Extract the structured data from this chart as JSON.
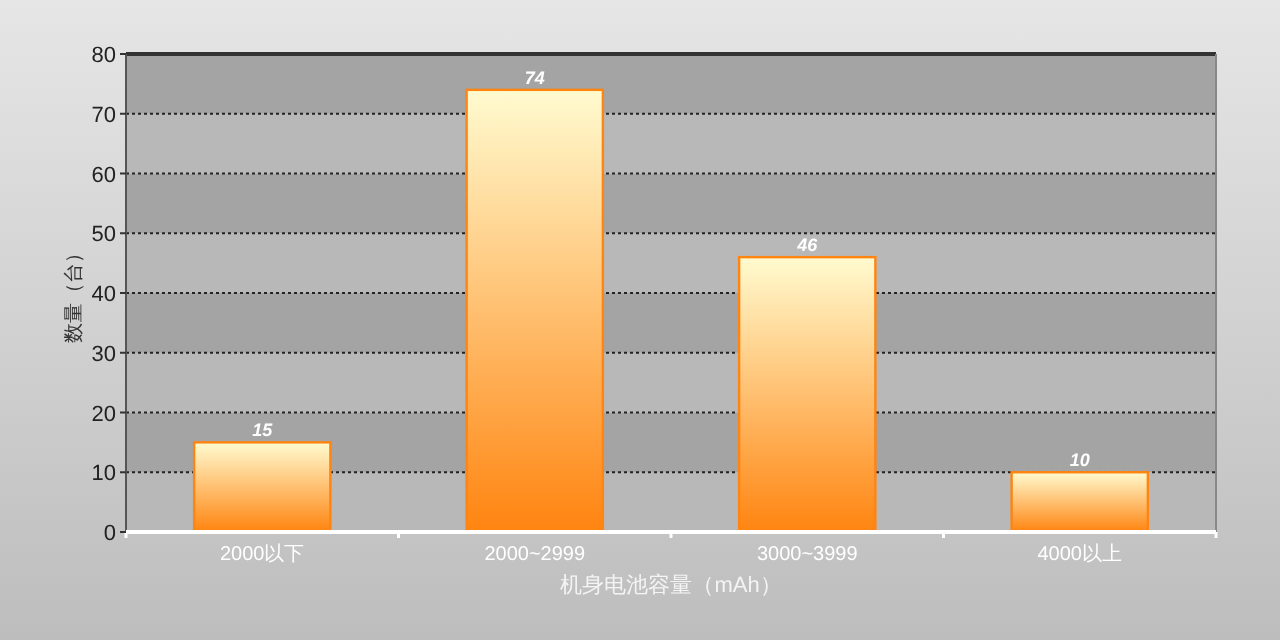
{
  "chart_data": {
    "type": "bar",
    "xlabel": "机身电池容量（mAh）",
    "ylabel": "数量（台）",
    "categories": [
      "2000以下",
      "2000~2999",
      "3000~3999",
      "4000以上"
    ],
    "values": [
      15,
      74,
      46,
      10
    ],
    "color": "#ff8410",
    "ylim": [
      0,
      80
    ],
    "yticks": [
      0,
      10,
      20,
      30,
      40,
      50,
      60,
      70,
      80
    ],
    "grid": "y",
    "data_labels": true
  }
}
